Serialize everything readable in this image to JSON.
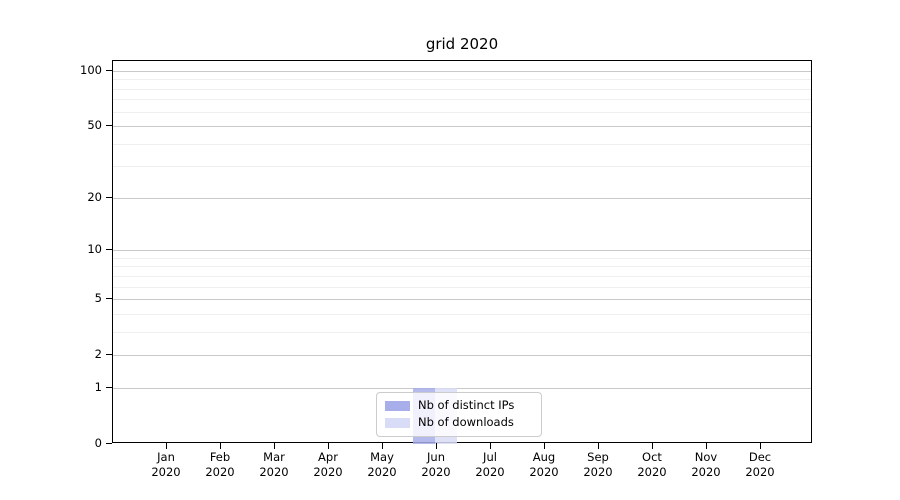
{
  "chart_data": {
    "type": "bar",
    "title": "grid 2020",
    "categories": [
      "Jan",
      "Feb",
      "Mar",
      "Apr",
      "May",
      "Jun",
      "Jul",
      "Aug",
      "Sep",
      "Oct",
      "Nov",
      "Dec"
    ],
    "category_year": "2020",
    "series": [
      {
        "name": "Nb of distinct IPs",
        "color": "#a8aeea",
        "values": [
          0,
          0,
          0,
          0,
          0,
          1,
          0,
          0,
          0,
          0,
          0,
          0
        ]
      },
      {
        "name": "Nb of downloads",
        "color": "#d9dcf6",
        "values": [
          0,
          0,
          0,
          0,
          0,
          1,
          0,
          0,
          0,
          0,
          0,
          0
        ]
      }
    ],
    "y_axis": {
      "scale": "symlog (position proportional to log10(1+v))",
      "major_ticks": [
        0,
        1,
        2,
        5,
        10,
        20,
        50,
        100
      ],
      "minor_ticks": [
        3,
        4,
        6,
        7,
        8,
        9,
        30,
        40,
        60,
        70,
        80,
        90
      ],
      "ylim": [
        0,
        113
      ]
    },
    "x_axis": {
      "tick_label_lines": 2
    },
    "grid": {
      "major_color": "#c9c9c9",
      "minor_color": "#efefef",
      "on": true
    },
    "legend": {
      "position": "lower center",
      "border_color": "#cccccc"
    },
    "colors": {
      "spine": "#000000",
      "text": "#000000",
      "background": "#ffffff"
    }
  }
}
